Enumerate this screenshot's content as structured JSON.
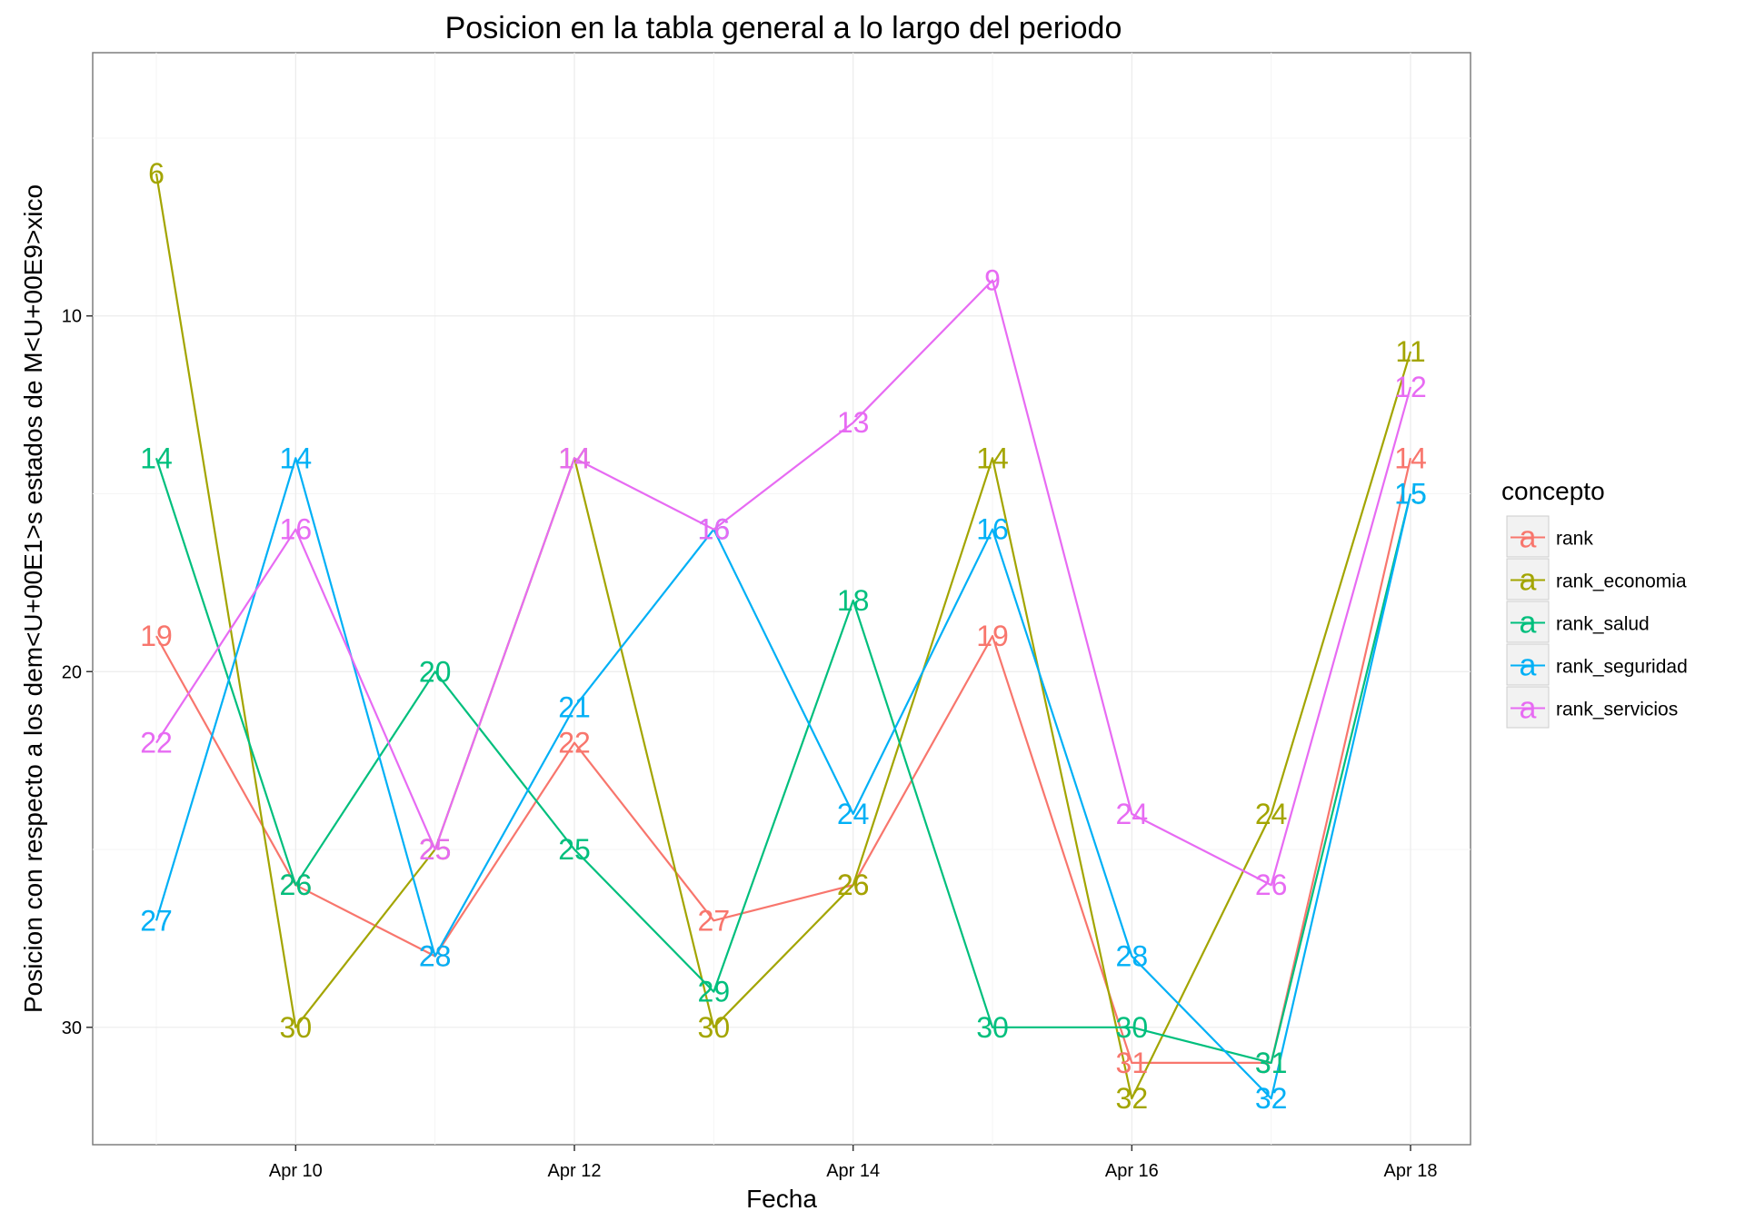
{
  "chart_data": {
    "type": "line",
    "title": "Posicion en la tabla general a lo largo del periodo",
    "xlabel": "Fecha",
    "ylabel": "Posicion con respecto a los dem<U+00E1>s estados de M<U+00E9>xico",
    "x": [
      "Apr 09",
      "Apr 10",
      "Apr 11",
      "Apr 12",
      "Apr 13",
      "Apr 14",
      "Apr 15",
      "Apr 16",
      "Apr 17",
      "Apr 18"
    ],
    "x_tick_labels": [
      "Apr 10",
      "Apr 12",
      "Apr 14",
      "Apr 16",
      "Apr 18"
    ],
    "x_tick_index": [
      1,
      3,
      5,
      7,
      9
    ],
    "y_ticks": [
      10,
      20,
      30
    ],
    "y_tick_labels": [
      "10",
      "20",
      "30"
    ],
    "ylim": [
      33.3,
      2.6
    ],
    "y_reversed": true,
    "grid": true,
    "legend": {
      "title": "concepto",
      "position": "right",
      "glyph": "a"
    },
    "series": [
      {
        "name": "rank",
        "color": "#F8766D",
        "values": [
          19,
          26,
          28,
          22,
          27,
          26,
          19,
          31,
          31,
          14
        ]
      },
      {
        "name": "rank_economia",
        "color": "#A3A500",
        "values": [
          6,
          30,
          25,
          14,
          30,
          26,
          14,
          32,
          24,
          11
        ]
      },
      {
        "name": "rank_salud",
        "color": "#00BF7D",
        "values": [
          14,
          26,
          20,
          25,
          29,
          18,
          30,
          30,
          31,
          15
        ]
      },
      {
        "name": "rank_seguridad",
        "color": "#00B0F6",
        "values": [
          27,
          14,
          28,
          21,
          16,
          24,
          16,
          28,
          32,
          15
        ]
      },
      {
        "name": "rank_servicios",
        "color": "#E76BF3",
        "values": [
          22,
          16,
          25,
          14,
          16,
          13,
          9,
          24,
          26,
          12
        ]
      }
    ]
  }
}
